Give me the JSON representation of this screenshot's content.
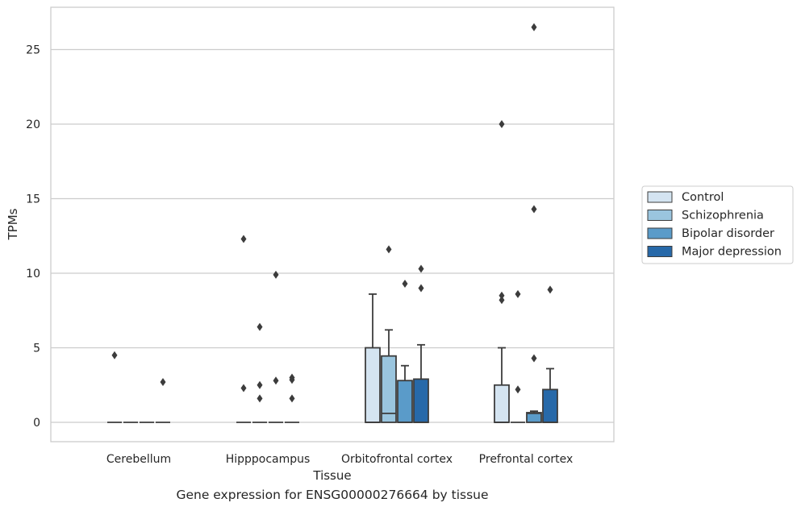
{
  "caption": "Gene expression for ENSG00000276664 by tissue",
  "chart_data": {
    "type": "boxplot",
    "title": "",
    "xlabel": "Tissue",
    "ylabel": "TPMs",
    "ylim": [
      -1.3,
      27.8
    ],
    "yticks": [
      0,
      5,
      10,
      15,
      20,
      25
    ],
    "grid": "horizontal",
    "legend_position": "right",
    "categories": [
      "Cerebellum",
      "Hipppocampus",
      "Orbitofrontal cortex",
      "Prefrontal cortex"
    ],
    "series": [
      {
        "name": "Control",
        "color": "#d4e4f1",
        "boxes": [
          {
            "q1": 0,
            "median": 0,
            "q3": 0,
            "whisker_low": 0,
            "whisker_high": 0,
            "outliers": [
              4.5
            ]
          },
          {
            "q1": 0,
            "median": 0,
            "q3": 0,
            "whisker_low": 0,
            "whisker_high": 0,
            "outliers": [
              12.3,
              2.3
            ]
          },
          {
            "q1": 0,
            "median": 0,
            "q3": 5.0,
            "whisker_low": 0,
            "whisker_high": 8.6,
            "outliers": []
          },
          {
            "q1": 0,
            "median": 0,
            "q3": 2.5,
            "whisker_low": 0,
            "whisker_high": 5.0,
            "outliers": [
              20.0,
              8.5,
              8.2
            ]
          }
        ]
      },
      {
        "name": "Schizophrenia",
        "color": "#9ac5de",
        "boxes": [
          {
            "q1": 0,
            "median": 0,
            "q3": 0,
            "whisker_low": 0,
            "whisker_high": 0,
            "outliers": []
          },
          {
            "q1": 0,
            "median": 0,
            "q3": 0,
            "whisker_low": 0,
            "whisker_high": 0,
            "outliers": [
              6.4,
              2.5,
              1.6
            ]
          },
          {
            "q1": 0,
            "median": 0.6,
            "q3": 4.45,
            "whisker_low": 0,
            "whisker_high": 6.2,
            "outliers": [
              11.6
            ]
          },
          {
            "q1": 0,
            "median": 0,
            "q3": 0,
            "whisker_low": 0,
            "whisker_high": 0,
            "outliers": [
              8.6,
              2.2
            ]
          }
        ]
      },
      {
        "name": "Bipolar disorder",
        "color": "#5a9bc9",
        "boxes": [
          {
            "q1": 0,
            "median": 0,
            "q3": 0,
            "whisker_low": 0,
            "whisker_high": 0,
            "outliers": []
          },
          {
            "q1": 0,
            "median": 0,
            "q3": 0,
            "whisker_low": 0,
            "whisker_high": 0,
            "outliers": [
              9.9,
              2.8
            ]
          },
          {
            "q1": 0,
            "median": 0,
            "q3": 2.8,
            "whisker_low": 0,
            "whisker_high": 3.8,
            "outliers": [
              9.3
            ]
          },
          {
            "q1": 0,
            "median": 0.6,
            "q3": 0.65,
            "whisker_low": 0,
            "whisker_high": 0.75,
            "outliers": [
              26.5,
              14.3,
              4.3
            ]
          }
        ]
      },
      {
        "name": "Major depression",
        "color": "#2769a9",
        "boxes": [
          {
            "q1": 0,
            "median": 0,
            "q3": 0,
            "whisker_low": 0,
            "whisker_high": 0,
            "outliers": [
              2.7
            ]
          },
          {
            "q1": 0,
            "median": 0,
            "q3": 0,
            "whisker_low": 0,
            "whisker_high": 0,
            "outliers": [
              3.0,
              2.85,
              1.6
            ]
          },
          {
            "q1": 0,
            "median": 0,
            "q3": 2.9,
            "whisker_low": 0,
            "whisker_high": 5.2,
            "outliers": [
              10.3,
              9.0
            ]
          },
          {
            "q1": 0,
            "median": 0,
            "q3": 2.2,
            "whisker_low": 0,
            "whisker_high": 3.6,
            "outliers": [
              8.9
            ]
          }
        ]
      }
    ]
  }
}
